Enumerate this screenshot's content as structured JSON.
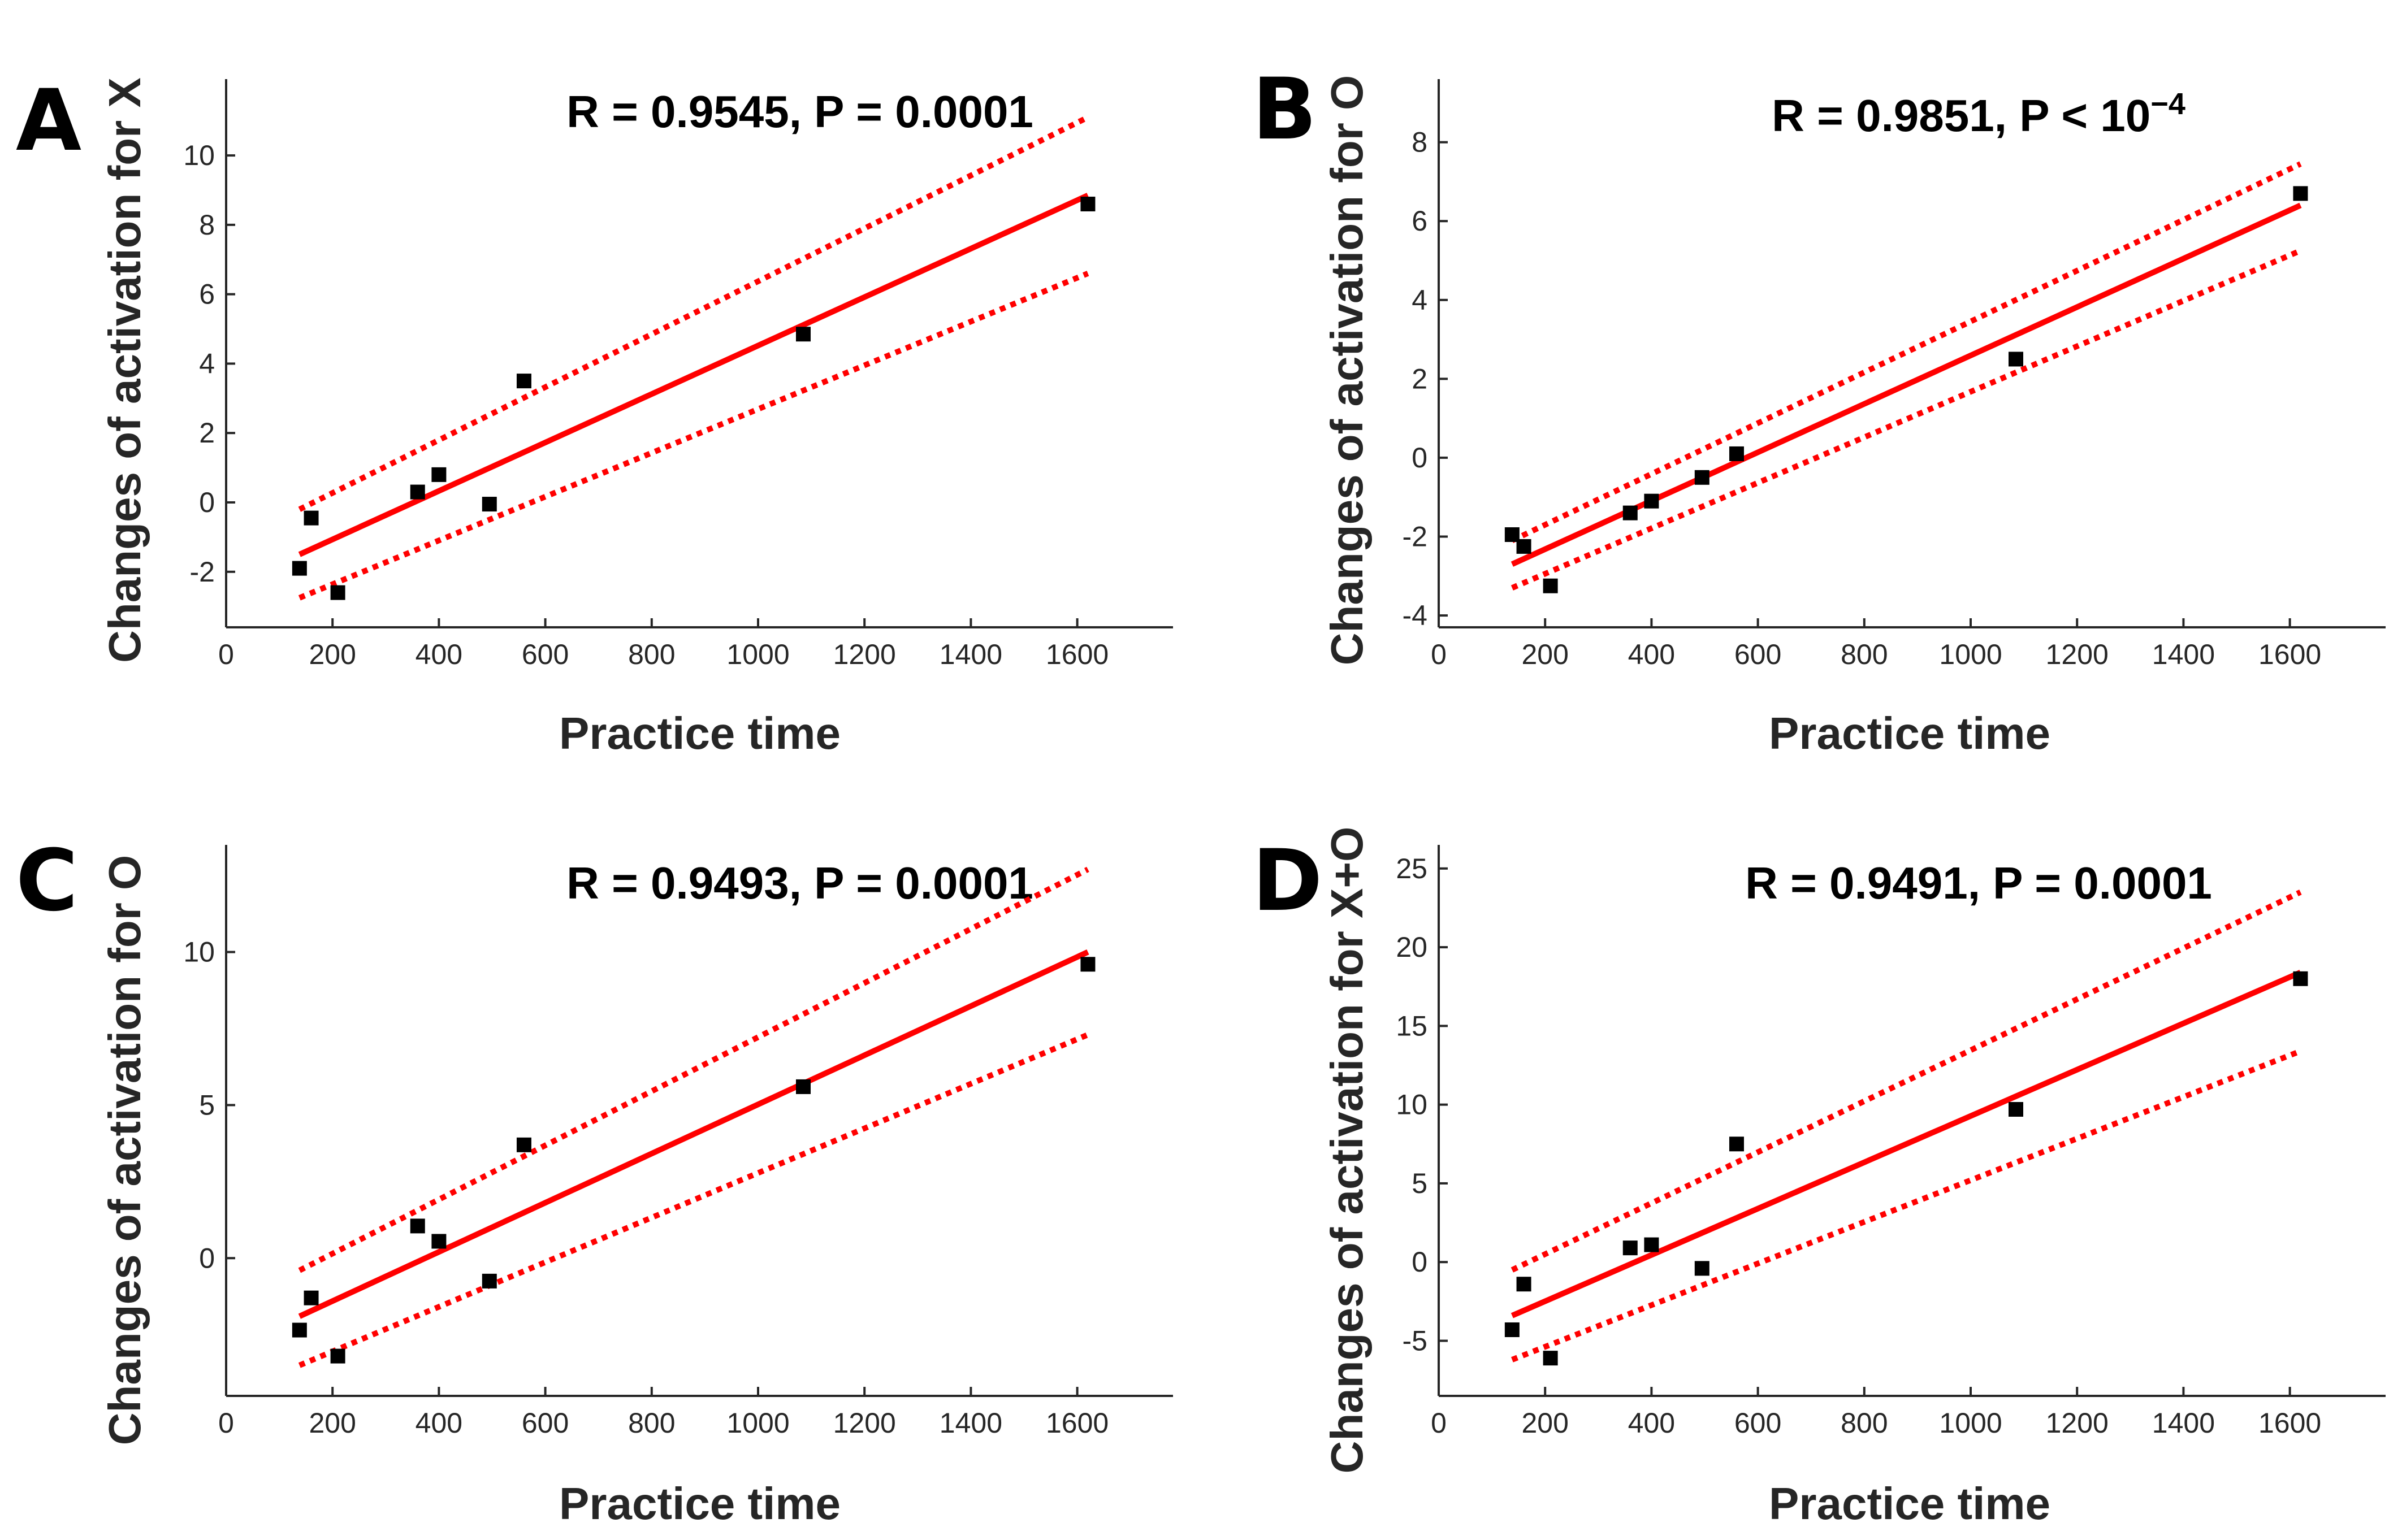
{
  "chart_data": [
    {
      "type": "scatter",
      "panel": "A",
      "stat": {
        "text": "R = 0.9545, P = 0.0001",
        "sup": ""
      },
      "xlabel": "Practice time",
      "ylabel": "Changes of activation for X",
      "xlim": [
        0,
        1780
      ],
      "ylim": [
        -3.6,
        12.2
      ],
      "xticks": [
        0,
        200,
        400,
        600,
        800,
        1000,
        1200,
        1400,
        1600
      ],
      "yticks": [
        -2,
        0,
        2,
        4,
        6,
        8,
        10
      ],
      "x": [
        138,
        160,
        210,
        360,
        400,
        495,
        560,
        1085,
        1620
      ],
      "y": [
        -1.9,
        -0.45,
        -2.6,
        0.3,
        0.8,
        -0.05,
        3.5,
        4.85,
        8.6
      ],
      "fit": {
        "x": [
          138,
          1620
        ],
        "y": [
          -1.5,
          8.85
        ]
      },
      "ci_upper": {
        "x": [
          138,
          1620
        ],
        "y": [
          -0.2,
          11.1
        ]
      },
      "ci_lower": {
        "x": [
          138,
          1620
        ],
        "y": [
          -2.75,
          6.6
        ]
      }
    },
    {
      "type": "scatter",
      "panel": "B",
      "stat": {
        "text": "R = 0.9851, P < 10",
        "sup": "−4"
      },
      "xlabel": "Practice time",
      "ylabel": "Changes of activation for O",
      "xlim": [
        0,
        1780
      ],
      "ylim": [
        -4.3,
        9.6
      ],
      "xticks": [
        0,
        200,
        400,
        600,
        800,
        1000,
        1200,
        1400,
        1600
      ],
      "yticks": [
        -4,
        -2,
        0,
        2,
        4,
        6,
        8
      ],
      "x": [
        138,
        160,
        210,
        360,
        400,
        495,
        560,
        1085,
        1620
      ],
      "y": [
        -1.95,
        -2.25,
        -3.25,
        -1.4,
        -1.1,
        -0.5,
        0.1,
        2.5,
        6.7
      ],
      "fit": {
        "x": [
          138,
          1620
        ],
        "y": [
          -2.7,
          6.4
        ]
      },
      "ci_upper": {
        "x": [
          138,
          1620
        ],
        "y": [
          -2.1,
          7.45
        ]
      },
      "ci_lower": {
        "x": [
          138,
          1620
        ],
        "y": [
          -3.3,
          5.25
        ]
      }
    },
    {
      "type": "scatter",
      "panel": "C",
      "stat": {
        "text": "R = 0.9493, P = 0.0001",
        "sup": ""
      },
      "xlabel": "Practice time",
      "ylabel": "Changes of activation for O",
      "xlim": [
        0,
        1780
      ],
      "ylim": [
        -4.5,
        13.5
      ],
      "xticks": [
        0,
        200,
        400,
        600,
        800,
        1000,
        1200,
        1400,
        1600
      ],
      "yticks": [
        0,
        5,
        10
      ],
      "x": [
        138,
        160,
        210,
        360,
        400,
        495,
        560,
        1085,
        1620
      ],
      "y": [
        -2.35,
        -1.3,
        -3.2,
        1.05,
        0.55,
        -0.75,
        3.7,
        5.6,
        9.6
      ],
      "fit": {
        "x": [
          138,
          1620
        ],
        "y": [
          -1.9,
          10.0
        ]
      },
      "ci_upper": {
        "x": [
          138,
          1620
        ],
        "y": [
          -0.4,
          12.7
        ]
      },
      "ci_lower": {
        "x": [
          138,
          1620
        ],
        "y": [
          -3.5,
          7.3
        ]
      }
    },
    {
      "type": "scatter",
      "panel": "D",
      "stat": {
        "text": "R = 0.9491, P = 0.0001",
        "sup": ""
      },
      "xlabel": "Practice time",
      "ylabel": "Changes of activation for X+O",
      "xlim": [
        0,
        1780
      ],
      "ylim": [
        -8.5,
        26.5
      ],
      "xticks": [
        0,
        200,
        400,
        600,
        800,
        1000,
        1200,
        1400,
        1600
      ],
      "yticks": [
        -5,
        0,
        5,
        10,
        15,
        20,
        25
      ],
      "x": [
        138,
        160,
        210,
        360,
        400,
        495,
        560,
        1085,
        1620
      ],
      "y": [
        -4.3,
        -1.4,
        -6.1,
        0.9,
        1.1,
        -0.4,
        7.5,
        9.7,
        18.0
      ],
      "fit": {
        "x": [
          138,
          1620
        ],
        "y": [
          -3.4,
          18.4
        ]
      },
      "ci_upper": {
        "x": [
          138,
          1620
        ],
        "y": [
          -0.5,
          23.5
        ]
      },
      "ci_lower": {
        "x": [
          138,
          1620
        ],
        "y": [
          -6.2,
          13.4
        ]
      }
    }
  ],
  "colors": {
    "fit": "#ff0000",
    "points": "#000000",
    "axes": "#262626"
  }
}
